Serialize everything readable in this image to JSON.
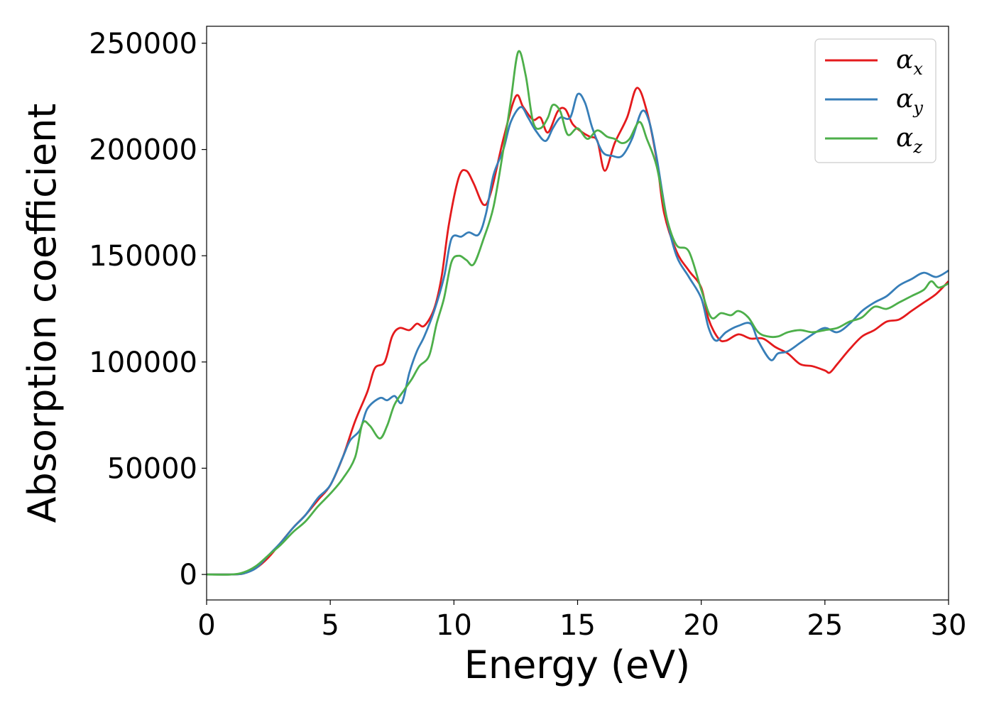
{
  "chart_data": {
    "type": "line",
    "xlabel": "Energy (eV)",
    "ylabel": "Absorption coefficient",
    "xlim": [
      0,
      30
    ],
    "ylim": [
      -12000,
      258000
    ],
    "xticks": [
      0,
      5,
      10,
      15,
      20,
      25,
      30
    ],
    "yticks": [
      0,
      50000,
      100000,
      150000,
      200000,
      250000
    ],
    "grid": false,
    "legend_position": "top-right",
    "series": [
      {
        "name": "α_x",
        "name_base": "α",
        "name_sub": "x",
        "color": "#e41a1c",
        "points": [
          [
            0,
            0
          ],
          [
            1,
            0
          ],
          [
            1.5,
            500
          ],
          [
            2,
            3000
          ],
          [
            2.5,
            8000
          ],
          [
            3,
            15000
          ],
          [
            3.5,
            22000
          ],
          [
            4,
            28000
          ],
          [
            4.5,
            35000
          ],
          [
            5,
            42000
          ],
          [
            5.5,
            55000
          ],
          [
            6,
            72000
          ],
          [
            6.5,
            86000
          ],
          [
            6.8,
            97000
          ],
          [
            7.2,
            100000
          ],
          [
            7.5,
            112000
          ],
          [
            7.8,
            116000
          ],
          [
            8.2,
            115000
          ],
          [
            8.5,
            118000
          ],
          [
            8.8,
            117000
          ],
          [
            9.2,
            125000
          ],
          [
            9.5,
            140000
          ],
          [
            9.8,
            165000
          ],
          [
            10.2,
            187000
          ],
          [
            10.5,
            190000
          ],
          [
            10.8,
            184000
          ],
          [
            11.2,
            174000
          ],
          [
            11.5,
            180000
          ],
          [
            12,
            205000
          ],
          [
            12.5,
            225000
          ],
          [
            12.8,
            220000
          ],
          [
            13.2,
            214000
          ],
          [
            13.5,
            215000
          ],
          [
            13.8,
            208000
          ],
          [
            14.2,
            218000
          ],
          [
            14.5,
            219000
          ],
          [
            14.8,
            212000
          ],
          [
            15.2,
            208000
          ],
          [
            15.5,
            206000
          ],
          [
            15.8,
            204000
          ],
          [
            16.1,
            190000
          ],
          [
            16.5,
            203000
          ],
          [
            17,
            215000
          ],
          [
            17.4,
            229000
          ],
          [
            17.8,
            218000
          ],
          [
            18.2,
            195000
          ],
          [
            18.5,
            170000
          ],
          [
            19,
            152000
          ],
          [
            19.5,
            143000
          ],
          [
            20,
            135000
          ],
          [
            20.3,
            120000
          ],
          [
            20.7,
            111000
          ],
          [
            21,
            110000
          ],
          [
            21.5,
            113000
          ],
          [
            22,
            111000
          ],
          [
            22.5,
            111000
          ],
          [
            23,
            107000
          ],
          [
            23.5,
            104000
          ],
          [
            24,
            99000
          ],
          [
            24.5,
            98000
          ],
          [
            25,
            96000
          ],
          [
            25.2,
            95000
          ],
          [
            25.5,
            99000
          ],
          [
            26,
            106000
          ],
          [
            26.5,
            112000
          ],
          [
            27,
            115000
          ],
          [
            27.5,
            119000
          ],
          [
            28,
            120000
          ],
          [
            28.5,
            124000
          ],
          [
            29,
            128000
          ],
          [
            29.5,
            132000
          ],
          [
            30,
            138000
          ]
        ]
      },
      {
        "name": "α_y",
        "name_base": "α",
        "name_sub": "y",
        "color": "#377eb8",
        "points": [
          [
            0,
            0
          ],
          [
            1,
            0
          ],
          [
            1.5,
            500
          ],
          [
            2,
            3000
          ],
          [
            2.5,
            9000
          ],
          [
            3,
            15000
          ],
          [
            3.5,
            22000
          ],
          [
            4,
            28000
          ],
          [
            4.5,
            36000
          ],
          [
            5,
            42000
          ],
          [
            5.5,
            55000
          ],
          [
            5.8,
            63000
          ],
          [
            6.2,
            68000
          ],
          [
            6.5,
            78000
          ],
          [
            7,
            83000
          ],
          [
            7.3,
            82000
          ],
          [
            7.6,
            84000
          ],
          [
            7.9,
            81000
          ],
          [
            8.2,
            95000
          ],
          [
            8.5,
            105000
          ],
          [
            8.8,
            112000
          ],
          [
            9.2,
            124000
          ],
          [
            9.6,
            140000
          ],
          [
            9.9,
            158000
          ],
          [
            10.3,
            159000
          ],
          [
            10.6,
            161000
          ],
          [
            11,
            160000
          ],
          [
            11.3,
            170000
          ],
          [
            11.6,
            188000
          ],
          [
            12,
            200000
          ],
          [
            12.3,
            213000
          ],
          [
            12.7,
            220000
          ],
          [
            13,
            215000
          ],
          [
            13.3,
            209000
          ],
          [
            13.7,
            204000
          ],
          [
            14,
            210000
          ],
          [
            14.3,
            215000
          ],
          [
            14.7,
            215000
          ],
          [
            15,
            226000
          ],
          [
            15.3,
            222000
          ],
          [
            15.6,
            210000
          ],
          [
            16,
            199000
          ],
          [
            16.4,
            197000
          ],
          [
            16.8,
            197000
          ],
          [
            17.2,
            205000
          ],
          [
            17.6,
            218000
          ],
          [
            17.9,
            213000
          ],
          [
            18.2,
            196000
          ],
          [
            18.6,
            168000
          ],
          [
            19,
            150000
          ],
          [
            19.5,
            140000
          ],
          [
            20,
            130000
          ],
          [
            20.3,
            116000
          ],
          [
            20.6,
            110000
          ],
          [
            21,
            114000
          ],
          [
            21.5,
            117000
          ],
          [
            22,
            118000
          ],
          [
            22.3,
            110000
          ],
          [
            22.8,
            101000
          ],
          [
            23.1,
            104000
          ],
          [
            23.5,
            105000
          ],
          [
            24,
            109000
          ],
          [
            24.5,
            113000
          ],
          [
            25,
            116000
          ],
          [
            25.5,
            114000
          ],
          [
            26,
            118000
          ],
          [
            26.5,
            124000
          ],
          [
            27,
            128000
          ],
          [
            27.5,
            131000
          ],
          [
            28,
            136000
          ],
          [
            28.5,
            139000
          ],
          [
            29,
            142000
          ],
          [
            29.5,
            140000
          ],
          [
            30,
            143000
          ]
        ]
      },
      {
        "name": "α_z",
        "name_base": "α",
        "name_sub": "z",
        "color": "#4daf4a",
        "points": [
          [
            0,
            0
          ],
          [
            1,
            0
          ],
          [
            1.5,
            1000
          ],
          [
            2,
            4000
          ],
          [
            2.5,
            9000
          ],
          [
            3,
            14000
          ],
          [
            3.5,
            20000
          ],
          [
            4,
            25000
          ],
          [
            4.5,
            32000
          ],
          [
            5,
            38000
          ],
          [
            5.5,
            45000
          ],
          [
            6,
            55000
          ],
          [
            6.3,
            71000
          ],
          [
            6.6,
            70000
          ],
          [
            7,
            64000
          ],
          [
            7.3,
            70000
          ],
          [
            7.6,
            80000
          ],
          [
            8,
            87000
          ],
          [
            8.3,
            92000
          ],
          [
            8.6,
            98000
          ],
          [
            9,
            103000
          ],
          [
            9.3,
            118000
          ],
          [
            9.6,
            130000
          ],
          [
            9.9,
            147000
          ],
          [
            10.2,
            150000
          ],
          [
            10.5,
            148000
          ],
          [
            10.8,
            146000
          ],
          [
            11.2,
            158000
          ],
          [
            11.6,
            173000
          ],
          [
            12,
            200000
          ],
          [
            12.3,
            223000
          ],
          [
            12.6,
            246000
          ],
          [
            12.9,
            235000
          ],
          [
            13.2,
            213000
          ],
          [
            13.5,
            210000
          ],
          [
            13.8,
            215000
          ],
          [
            14,
            221000
          ],
          [
            14.3,
            218000
          ],
          [
            14.6,
            207000
          ],
          [
            15,
            210000
          ],
          [
            15.4,
            205000
          ],
          [
            15.8,
            209000
          ],
          [
            16.2,
            206000
          ],
          [
            16.5,
            205000
          ],
          [
            16.8,
            203000
          ],
          [
            17.1,
            205000
          ],
          [
            17.5,
            213000
          ],
          [
            17.8,
            205000
          ],
          [
            18.2,
            192000
          ],
          [
            18.6,
            168000
          ],
          [
            19,
            155000
          ],
          [
            19.5,
            152000
          ],
          [
            20,
            134000
          ],
          [
            20.4,
            121000
          ],
          [
            20.8,
            123000
          ],
          [
            21.2,
            122000
          ],
          [
            21.5,
            124000
          ],
          [
            21.9,
            121000
          ],
          [
            22.3,
            114000
          ],
          [
            22.7,
            112000
          ],
          [
            23.1,
            112000
          ],
          [
            23.5,
            114000
          ],
          [
            24,
            115000
          ],
          [
            24.5,
            114000
          ],
          [
            25,
            115000
          ],
          [
            25.5,
            116000
          ],
          [
            26,
            119000
          ],
          [
            26.5,
            121000
          ],
          [
            27,
            126000
          ],
          [
            27.5,
            125000
          ],
          [
            28,
            128000
          ],
          [
            28.5,
            131000
          ],
          [
            29,
            134000
          ],
          [
            29.3,
            138000
          ],
          [
            29.6,
            135000
          ],
          [
            30,
            137000
          ]
        ]
      }
    ]
  }
}
